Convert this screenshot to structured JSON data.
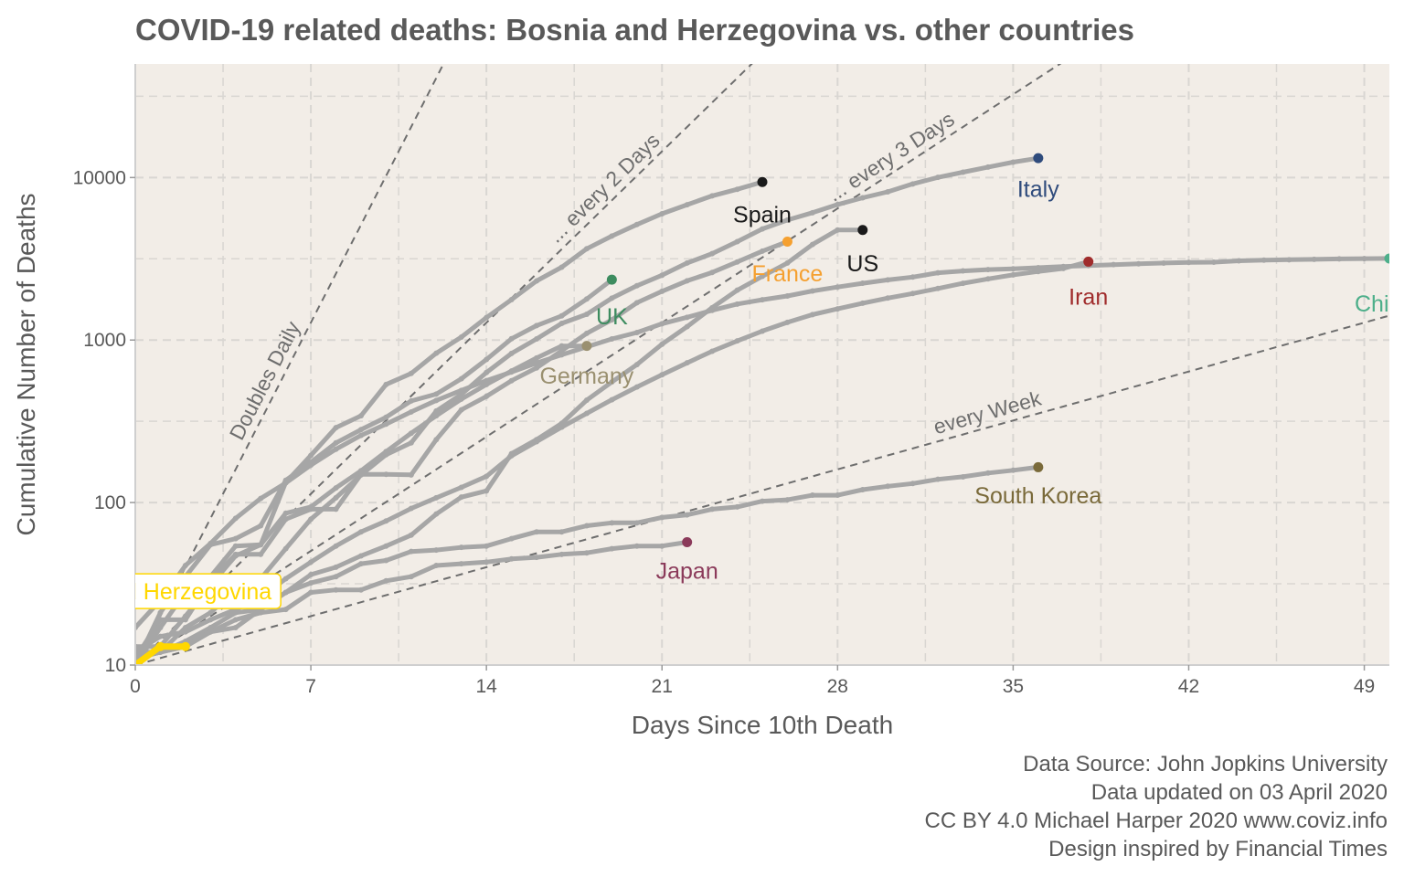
{
  "title": "COVID-19 related deaths: Bosnia and Herzegovina vs. other countries",
  "caption": [
    "Data Source: John Jopkins University",
    "Data updated on 03 April 2020",
    "CC BY 4.0 Michael Harper 2020 www.coviz.info",
    "Design inspired by Financial Times"
  ],
  "colors": {
    "panel": "#f2ede7",
    "grid": "#d9d6d2",
    "line": "#a6a6a6",
    "highlight": "#ffd700",
    "guide": "#6e6e6e"
  },
  "chart_data": {
    "type": "line",
    "title": "COVID-19 related deaths: Bosnia and Herzegovina vs. other countries",
    "xlabel": "Days Since 10th Death",
    "ylabel": "Cumulative Number of Deaths",
    "xlim": [
      0,
      50
    ],
    "ylim": [
      10,
      50000
    ],
    "y_scale": "log",
    "grid": true,
    "x_ticks": [
      0,
      7,
      14,
      21,
      28,
      35,
      42,
      49
    ],
    "y_ticks": [
      10,
      100,
      1000,
      10000
    ],
    "highlight_label": "Bosnia and Herzegovina",
    "guides": [
      {
        "label": "Doubles Daily",
        "doubling_days": 1
      },
      {
        "label": "... every 2 Days",
        "doubling_days": 2
      },
      {
        "label": "... every 3 Days",
        "doubling_days": 3
      },
      {
        "label": "every  Week",
        "doubling_days": 7
      }
    ],
    "series": [
      {
        "name": "China",
        "color": "#4daf8a",
        "label_pos": [
          50,
          1500
        ],
        "label_anchor": "start",
        "x": [
          0,
          1,
          2,
          3,
          4,
          5,
          6,
          7,
          8,
          9,
          10,
          11,
          12,
          13,
          14,
          15,
          16,
          17,
          18,
          19,
          20,
          21,
          22,
          23,
          24,
          25,
          26,
          27,
          28,
          29,
          30,
          31,
          32,
          33,
          34,
          35,
          36,
          37,
          38,
          39,
          40,
          41,
          42,
          43,
          44,
          45,
          46,
          47,
          48,
          49,
          50
        ],
        "y": [
          17,
          25,
          41,
          56,
          80,
          106,
          132,
          170,
          213,
          259,
          304,
          361,
          425,
          490,
          563,
          636,
          722,
          811,
          908,
          1016,
          1113,
          1259,
          1380,
          1523,
          1665,
          1770,
          1868,
          2004,
          2118,
          2236,
          2345,
          2442,
          2592,
          2663,
          2715,
          2744,
          2788,
          2835,
          2870,
          2912,
          2946,
          2977,
          3003,
          3013,
          3072,
          3105,
          3120,
          3136,
          3158,
          3169,
          3176
        ]
      },
      {
        "name": "Italy",
        "color": "#2f4b7c",
        "label_pos": [
          36,
          7600
        ],
        "label_anchor": "middle",
        "x": [
          0,
          1,
          2,
          3,
          4,
          5,
          6,
          7,
          8,
          9,
          10,
          11,
          12,
          13,
          14,
          15,
          16,
          17,
          18,
          19,
          20,
          21,
          22,
          23,
          24,
          25,
          26,
          27,
          28,
          29,
          30,
          31,
          32,
          33,
          34,
          35,
          36
        ],
        "y": [
          11,
          12,
          17,
          21,
          29,
          34,
          52,
          79,
          107,
          148,
          197,
          233,
          366,
          463,
          631,
          827,
          1016,
          1266,
          1441,
          1809,
          2158,
          2503,
          2978,
          3405,
          4032,
          4825,
          5476,
          6077,
          6820,
          7503,
          8165,
          9134,
          10023,
          10779,
          11591,
          12428,
          13155
        ]
      },
      {
        "name": "Spain",
        "color": "#1a1a1a",
        "label_pos": [
          25,
          5300
        ],
        "label_anchor": "middle",
        "x": [
          0,
          1,
          2,
          3,
          4,
          5,
          6,
          7,
          8,
          9,
          10,
          11,
          12,
          13,
          14,
          15,
          16,
          17,
          18,
          19,
          20,
          21,
          22,
          23,
          24,
          25
        ],
        "y": [
          10,
          17,
          28,
          35,
          54,
          55,
          133,
          195,
          289,
          342,
          533,
          623,
          830,
          1043,
          1375,
          1772,
          2311,
          2808,
          3647,
          4365,
          5138,
          5982,
          6803,
          7716,
          8464,
          9387
        ]
      },
      {
        "name": "US",
        "color": "#1a1a1a",
        "label_pos": [
          29,
          2650
        ],
        "label_anchor": "middle",
        "x": [
          0,
          1,
          2,
          3,
          4,
          5,
          6,
          7,
          8,
          9,
          10,
          11,
          12,
          13,
          14,
          15,
          16,
          17,
          18,
          19,
          20,
          21,
          22,
          23,
          24,
          25,
          26,
          27,
          28,
          29
        ],
        "y": [
          11,
          12,
          14,
          17,
          21,
          22,
          28,
          36,
          40,
          47,
          54,
          63,
          85,
          108,
          118,
          200,
          244,
          307,
          427,
          552,
          706,
          942,
          1209,
          1581,
          2026,
          2467,
          2978,
          3873,
          4757,
          4757
        ]
      },
      {
        "name": "France",
        "color": "#f5a030",
        "label_pos": [
          26,
          2300
        ],
        "label_anchor": "middle",
        "x": [
          0,
          1,
          2,
          3,
          4,
          5,
          6,
          7,
          8,
          9,
          10,
          11,
          12,
          13,
          14,
          15,
          16,
          17,
          18,
          19,
          20,
          21,
          22,
          23,
          24,
          25,
          26
        ],
        "y": [
          11,
          19,
          19,
          33,
          48,
          48,
          79,
          91,
          91,
          149,
          149,
          148,
          244,
          372,
          450,
          562,
          674,
          860,
          1100,
          1331,
          1696,
          1995,
          2314,
          2606,
          3024,
          3523,
          4032
        ]
      },
      {
        "name": "Iran",
        "color": "#a02c2c",
        "label_pos": [
          38,
          1650
        ],
        "label_anchor": "middle",
        "x": [
          0,
          1,
          2,
          3,
          4,
          5,
          6,
          7,
          8,
          9,
          10,
          11,
          12,
          13,
          14,
          15,
          16,
          17,
          18,
          19,
          20,
          21,
          22,
          23,
          24,
          25,
          26,
          27,
          28,
          29,
          30,
          31,
          32,
          33,
          34,
          35,
          36,
          37,
          38
        ],
        "y": [
          12,
          15,
          16,
          19,
          22,
          26,
          34,
          43,
          54,
          66,
          77,
          92,
          107,
          124,
          145,
          194,
          237,
          291,
          354,
          429,
          514,
          611,
          724,
          853,
          988,
          1135,
          1284,
          1433,
          1556,
          1685,
          1812,
          1934,
          2077,
          2234,
          2378,
          2517,
          2640,
          2757,
          3036
        ]
      },
      {
        "name": "UK",
        "color": "#3d8c5f",
        "label_pos": [
          19,
          1250
        ],
        "label_anchor": "middle",
        "x": [
          0,
          1,
          2,
          3,
          4,
          5,
          6,
          7,
          8,
          9,
          10,
          11,
          12,
          13,
          14,
          15,
          16,
          17,
          18,
          19
        ],
        "y": [
          10,
          21,
          35,
          55,
          60,
          72,
          137,
          177,
          233,
          281,
          335,
          422,
          465,
          578,
          759,
          1019,
          1228,
          1408,
          1789,
          2352
        ]
      },
      {
        "name": "Germany",
        "color": "#9a9070",
        "label_pos": [
          18,
          540
        ],
        "label_anchor": "middle",
        "x": [
          0,
          1,
          2,
          3,
          4,
          5,
          6,
          7,
          8,
          9,
          10,
          11,
          12,
          13,
          14,
          15,
          16,
          17,
          18
        ],
        "y": [
          13,
          13,
          20,
          31,
          47,
          55,
          86,
          94,
          123,
          157,
          206,
          267,
          342,
          433,
          533,
          645,
          775,
          920,
          920
        ]
      },
      {
        "name": "South Korea",
        "color": "#7a6a3a",
        "label_pos": [
          36,
          99
        ],
        "label_anchor": "middle",
        "x": [
          0,
          1,
          2,
          3,
          4,
          5,
          6,
          7,
          8,
          9,
          10,
          11,
          12,
          13,
          14,
          15,
          16,
          17,
          18,
          19,
          20,
          21,
          22,
          23,
          24,
          25,
          26,
          27,
          28,
          29,
          30,
          31,
          32,
          33,
          34,
          35,
          36
        ],
        "y": [
          11,
          12,
          13,
          16,
          17,
          22,
          28,
          32,
          35,
          42,
          44,
          50,
          51,
          53,
          54,
          60,
          66,
          66,
          72,
          75,
          75,
          81,
          84,
          91,
          94,
          102,
          104,
          111,
          111,
          120,
          126,
          131,
          139,
          144,
          152,
          158,
          165
        ]
      },
      {
        "name": "Japan",
        "color": "#8b3a5a",
        "label_pos": [
          22,
          34
        ],
        "label_anchor": "middle",
        "x": [
          0,
          1,
          2,
          3,
          4,
          5,
          6,
          7,
          8,
          9,
          10,
          11,
          12,
          13,
          14,
          15,
          16,
          17,
          18,
          19,
          20,
          21,
          22
        ],
        "y": [
          12,
          12,
          13,
          16,
          19,
          21,
          22,
          28,
          29,
          29,
          33,
          35,
          41,
          42,
          43,
          45,
          46,
          48,
          49,
          52,
          54,
          54,
          57
        ]
      },
      {
        "name": "Bosnia and Herzegovina",
        "color": "#ffd700",
        "highlight": true,
        "x": [
          0,
          1,
          2
        ],
        "y": [
          10,
          13,
          13
        ]
      }
    ]
  }
}
